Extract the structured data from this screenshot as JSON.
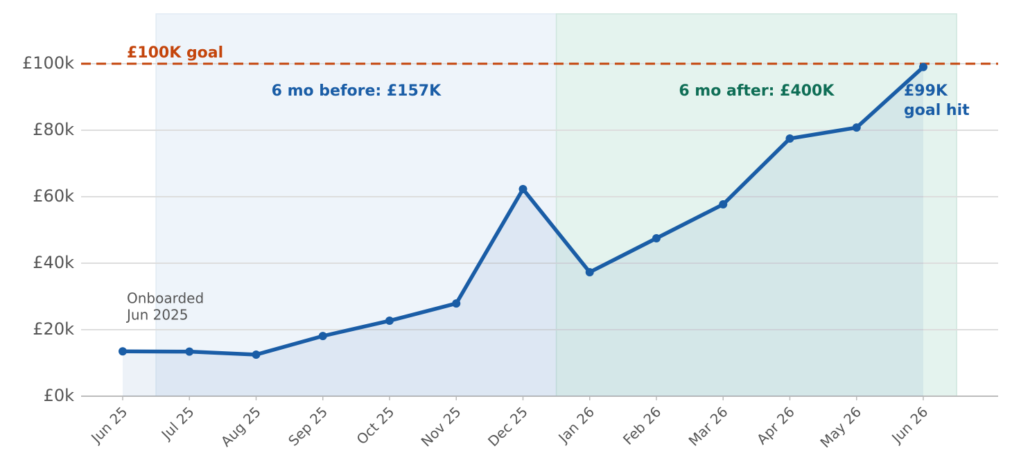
{
  "chart_data": {
    "type": "line",
    "categories": [
      "Jun 25",
      "Jul 25",
      "Aug 25",
      "Sep 25",
      "Oct 25",
      "Nov 25",
      "Dec 25",
      "Jan 26",
      "Feb 26",
      "Mar 26",
      "Apr 26",
      "May 26",
      "Jun 26"
    ],
    "series": [
      {
        "color": "#1a5da6",
        "values": [
          13.5,
          13.4,
          12.5,
          18.1,
          22.7,
          27.9,
          62.3,
          37.3,
          47.5,
          57.7,
          77.5,
          80.8,
          99.0
        ]
      }
    ],
    "ylim": [
      0,
      115
    ],
    "yticks": [
      {
        "value": 0,
        "label": "£0k"
      },
      {
        "value": 20,
        "label": "£20k"
      },
      {
        "value": 40,
        "label": "£40k"
      },
      {
        "value": 60,
        "label": "£60k"
      },
      {
        "value": 80,
        "label": "£80k"
      },
      {
        "value": 100,
        "label": "£100k"
      }
    ],
    "grid": true,
    "goal": {
      "value": 100,
      "label": "£100K goal",
      "color": "#c4450c"
    },
    "regions": [
      {
        "label": "6 mo before: £157K",
        "color": "#1a5da6"
      },
      {
        "label": "6 mo after: £400K",
        "color": "#0f6e56"
      }
    ],
    "annotations": {
      "end": [
        "£99K",
        "goal hit"
      ],
      "start": [
        "Onboarded",
        "Jun 2025"
      ]
    }
  }
}
